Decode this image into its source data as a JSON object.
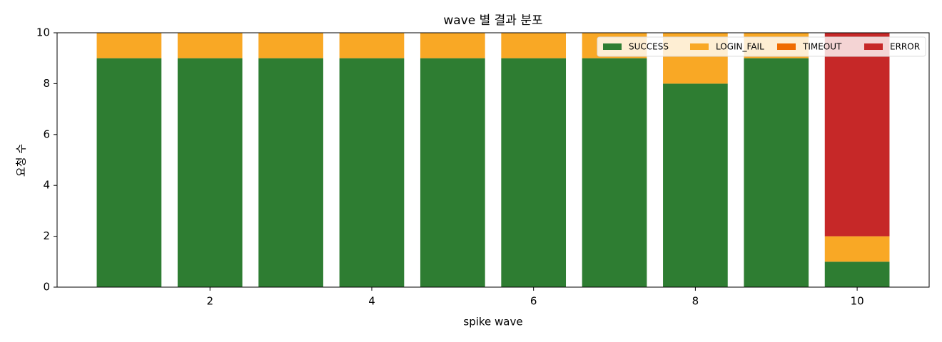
{
  "chart_data": {
    "type": "bar",
    "stacked": true,
    "title": "wave 별 결과 분포",
    "x_label": "spike wave",
    "y_label": "요청 수",
    "x": [
      1,
      2,
      3,
      4,
      5,
      6,
      7,
      8,
      9,
      10
    ],
    "series": [
      {
        "name": "SUCCESS",
        "color": "#2e7d32",
        "values": [
          9,
          9,
          9,
          9,
          9,
          9,
          9,
          8,
          9,
          1
        ]
      },
      {
        "name": "LOGIN_FAIL",
        "color": "#f9a825",
        "values": [
          1,
          1,
          1,
          1,
          1,
          1,
          1,
          2,
          1,
          1
        ]
      },
      {
        "name": "TIMEOUT",
        "color": "#ef6c00",
        "values": [
          0,
          0,
          0,
          0,
          0,
          0,
          0,
          0,
          0,
          0
        ]
      },
      {
        "name": "ERROR",
        "color": "#c62828",
        "values": [
          0,
          0,
          0,
          0,
          0,
          0,
          0,
          0,
          0,
          8
        ]
      }
    ],
    "xlim": [
      0.11,
      10.89
    ],
    "xticks": [
      2,
      4,
      6,
      8,
      10
    ],
    "ylim": [
      0,
      10
    ],
    "yticks": [
      0,
      2,
      4,
      6,
      8,
      10
    ],
    "legend": "upper right"
  }
}
